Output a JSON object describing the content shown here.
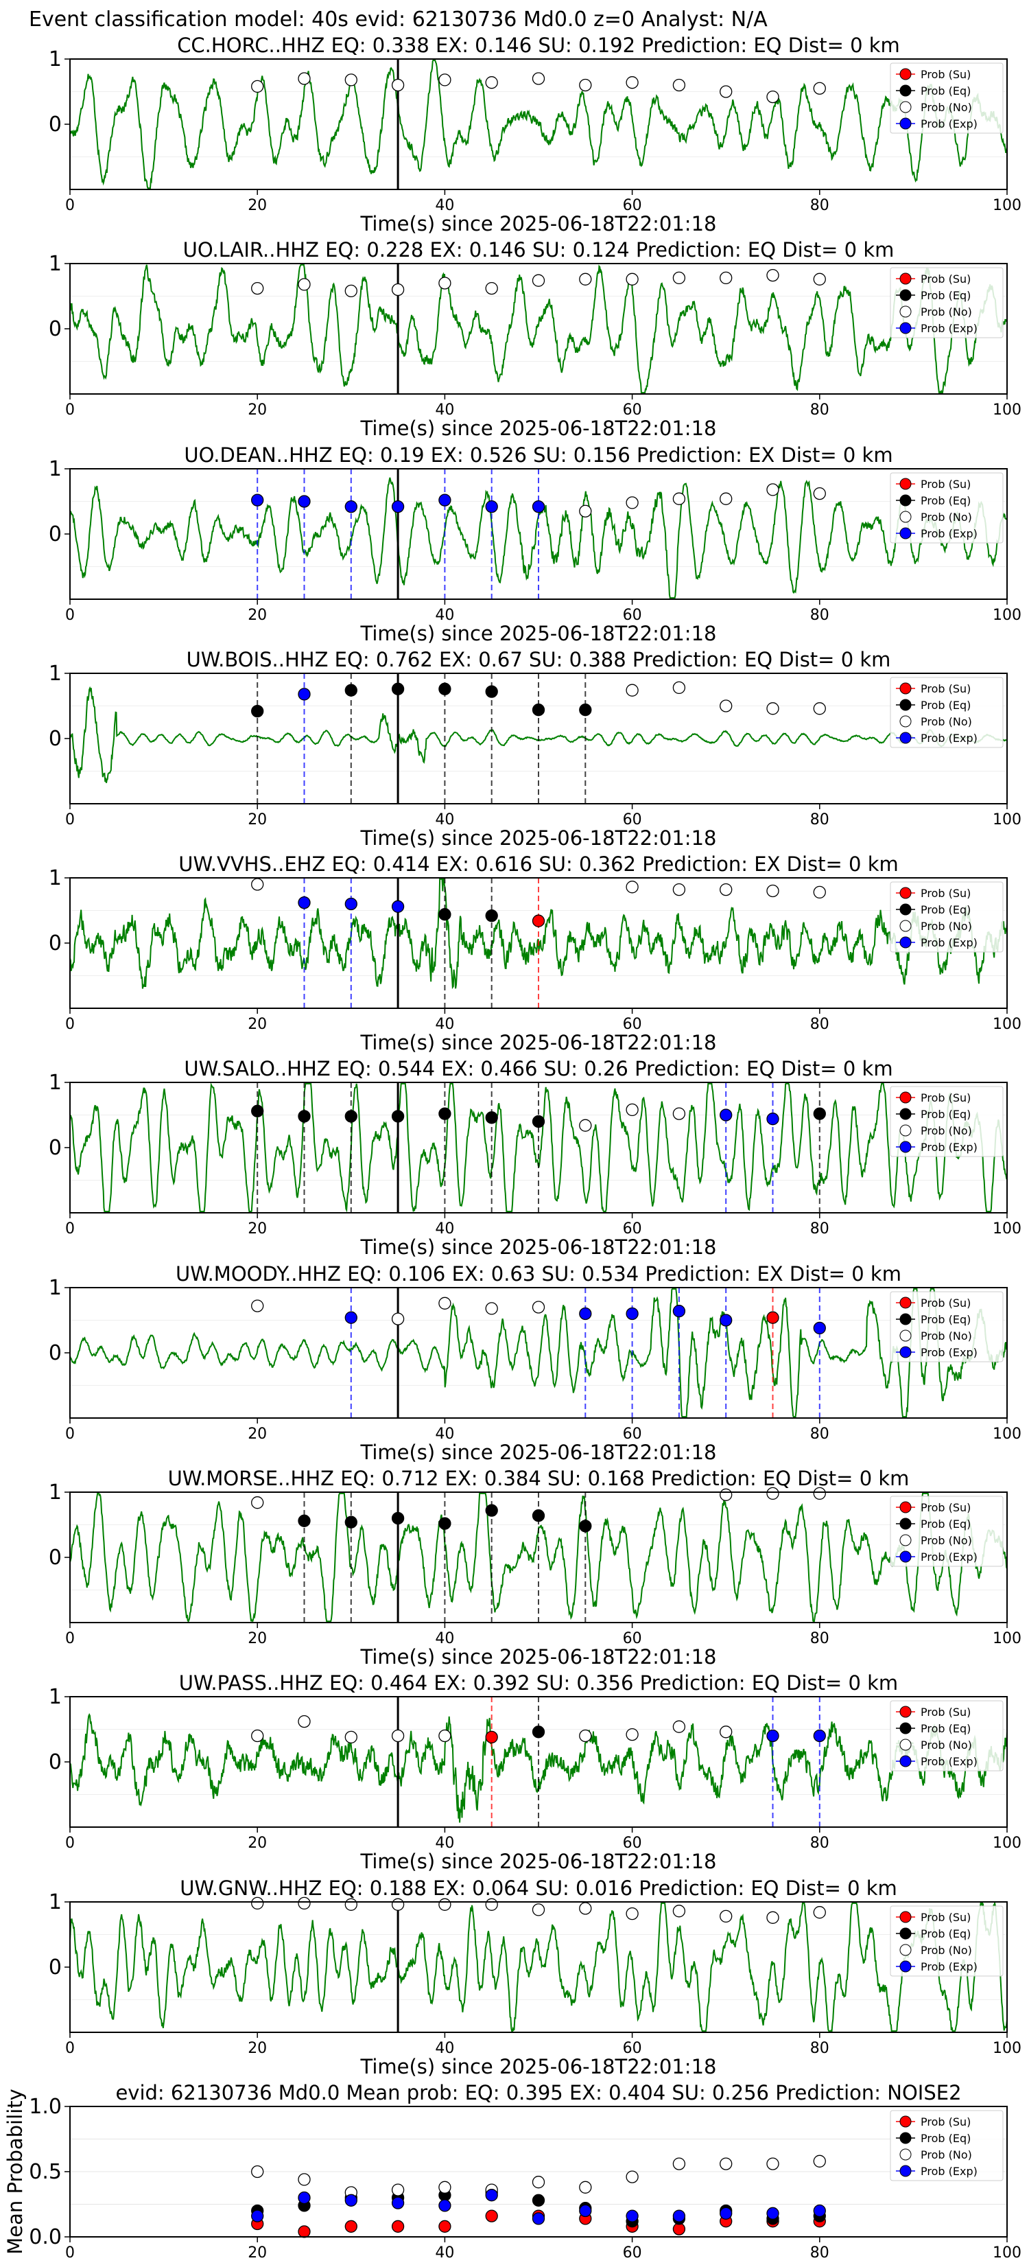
{
  "figure": {
    "suptitle": "Event classification model: 40s evid: 62130736 Md0.0 z=0 Analyst: N/A",
    "legend_labels": [
      "Prob (Su)",
      "Prob (Eq)",
      "Prob (No)",
      "Prob (Exp)"
    ],
    "legend_colors": [
      "#ff0000",
      "#000000",
      "#ffffff",
      "#0000ff"
    ],
    "waveform_color": "#008000",
    "xlabel": "Time(s) since 2025-06-18T22:01:18",
    "x_ticks": [
      "0",
      "20",
      "40",
      "60",
      "80",
      "100"
    ],
    "y_ticks_wave": [
      "1",
      "0"
    ],
    "y_ticks_mean": [
      "1.0",
      "0.5",
      "0.0"
    ],
    "onset_time": 35
  },
  "chart_data": [
    {
      "type": "line",
      "title": "CC.HORC..HHZ   EQ: 0.338  EX: 0.146  SU: 0.192   Prediction: EQ    Dist= 0 km",
      "xlim": [
        0,
        100
      ],
      "ylim": [
        -1,
        1
      ],
      "x": [
        20,
        25,
        30,
        35,
        40,
        45,
        50,
        55,
        60,
        65,
        70,
        75,
        80
      ],
      "series": [
        {
          "name": "Prob (No)",
          "values": [
            0.58,
            0.7,
            0.68,
            0.6,
            0.68,
            0.64,
            0.7,
            0.6,
            0.64,
            0.6,
            0.5,
            0.42,
            0.55
          ]
        }
      ],
      "markers": []
    },
    {
      "type": "line",
      "title": "UO.LAIR..HHZ   EQ: 0.228  EX: 0.146  SU: 0.124   Prediction: EQ    Dist= 0 km",
      "xlim": [
        0,
        100
      ],
      "ylim": [
        -1,
        1
      ],
      "x": [
        20,
        25,
        30,
        35,
        40,
        45,
        50,
        55,
        60,
        65,
        70,
        75,
        80
      ],
      "series": [
        {
          "name": "Prob (No)",
          "values": [
            0.62,
            0.68,
            0.58,
            0.6,
            0.7,
            0.62,
            0.74,
            0.76,
            0.76,
            0.78,
            0.78,
            0.82,
            0.76
          ]
        }
      ],
      "markers": []
    },
    {
      "type": "line",
      "title": "UO.DEAN..HHZ   EQ: 0.19  EX: 0.526  SU: 0.156   Prediction: EX    Dist= 0 km",
      "xlim": [
        0,
        100
      ],
      "ylim": [
        -1,
        1
      ],
      "x": [
        20,
        25,
        30,
        35,
        40,
        45,
        50,
        55,
        60,
        65,
        70,
        75,
        80
      ],
      "series": [
        {
          "name": "Prob (Exp)",
          "values": [
            0.52,
            0.5,
            0.42,
            0.42,
            0.52,
            0.42,
            0.42,
            null,
            null,
            null,
            null,
            null,
            null
          ]
        },
        {
          "name": "Prob (No)",
          "values": [
            null,
            null,
            null,
            null,
            null,
            null,
            null,
            0.35,
            0.48,
            0.54,
            0.54,
            0.68,
            0.62
          ]
        }
      ],
      "markers": [
        {
          "x": 20,
          "color": "#0000ff"
        },
        {
          "x": 25,
          "color": "#0000ff"
        },
        {
          "x": 30,
          "color": "#0000ff"
        },
        {
          "x": 40,
          "color": "#0000ff"
        },
        {
          "x": 45,
          "color": "#0000ff"
        },
        {
          "x": 50,
          "color": "#0000ff"
        }
      ]
    },
    {
      "type": "line",
      "title": "UW.BOIS..HHZ   EQ: 0.762  EX: 0.67  SU: 0.388   Prediction: EQ    Dist= 0 km",
      "xlim": [
        0,
        100
      ],
      "ylim": [
        -1,
        1
      ],
      "x": [
        20,
        25,
        30,
        35,
        40,
        45,
        50,
        55,
        60,
        65,
        70,
        75,
        80
      ],
      "series": [
        {
          "name": "Prob (Eq)",
          "values": [
            0.42,
            null,
            0.74,
            0.76,
            0.76,
            0.72,
            0.44,
            0.44,
            null,
            null,
            null,
            null,
            null
          ]
        },
        {
          "name": "Prob (Exp)",
          "values": [
            null,
            0.68,
            null,
            null,
            null,
            null,
            null,
            null,
            null,
            null,
            null,
            null,
            null
          ]
        },
        {
          "name": "Prob (No)",
          "values": [
            null,
            null,
            null,
            null,
            null,
            null,
            null,
            null,
            0.74,
            0.78,
            0.5,
            0.46,
            0.46
          ]
        }
      ],
      "markers": [
        {
          "x": 20,
          "color": "#000000"
        },
        {
          "x": 25,
          "color": "#0000ff"
        },
        {
          "x": 30,
          "color": "#000000"
        },
        {
          "x": 40,
          "color": "#000000"
        },
        {
          "x": 45,
          "color": "#000000"
        },
        {
          "x": 50,
          "color": "#000000"
        },
        {
          "x": 55,
          "color": "#000000"
        }
      ]
    },
    {
      "type": "line",
      "title": "UW.VVHS..EHZ   EQ: 0.414  EX: 0.616  SU: 0.362   Prediction: EX    Dist= 0 km",
      "xlim": [
        0,
        100
      ],
      "ylim": [
        -1,
        1
      ],
      "x": [
        20,
        25,
        30,
        35,
        40,
        45,
        50,
        55,
        60,
        65,
        70,
        75,
        80
      ],
      "series": [
        {
          "name": "Prob (No)",
          "values": [
            0.9,
            null,
            null,
            null,
            null,
            null,
            null,
            null,
            0.86,
            0.82,
            0.82,
            0.8,
            0.78
          ]
        },
        {
          "name": "Prob (Exp)",
          "values": [
            null,
            0.62,
            0.6,
            0.56,
            null,
            null,
            null,
            null,
            null,
            null,
            null,
            null,
            null
          ]
        },
        {
          "name": "Prob (Eq)",
          "values": [
            null,
            null,
            null,
            null,
            0.44,
            0.42,
            null,
            null,
            null,
            null,
            null,
            null,
            null
          ]
        },
        {
          "name": "Prob (Su)",
          "values": [
            null,
            null,
            null,
            null,
            null,
            null,
            0.34,
            null,
            null,
            null,
            null,
            null,
            null
          ]
        }
      ],
      "markers": [
        {
          "x": 25,
          "color": "#0000ff"
        },
        {
          "x": 30,
          "color": "#0000ff"
        },
        {
          "x": 40,
          "color": "#000000"
        },
        {
          "x": 45,
          "color": "#000000"
        },
        {
          "x": 50,
          "color": "#ff0000"
        }
      ]
    },
    {
      "type": "line",
      "title": "UW.SALO..HHZ   EQ: 0.544  EX: 0.466  SU: 0.26   Prediction: EQ    Dist= 0 km",
      "xlim": [
        0,
        100
      ],
      "ylim": [
        -1,
        1
      ],
      "x": [
        20,
        25,
        30,
        35,
        40,
        45,
        50,
        55,
        60,
        65,
        70,
        75,
        80
      ],
      "series": [
        {
          "name": "Prob (Eq)",
          "values": [
            0.56,
            0.48,
            0.48,
            0.48,
            0.52,
            0.46,
            0.4,
            null,
            null,
            null,
            null,
            null,
            0.52
          ]
        },
        {
          "name": "Prob (No)",
          "values": [
            null,
            null,
            null,
            null,
            null,
            null,
            null,
            0.34,
            0.58,
            0.52,
            null,
            null,
            null
          ]
        },
        {
          "name": "Prob (Exp)",
          "values": [
            null,
            null,
            null,
            null,
            null,
            null,
            null,
            null,
            null,
            null,
            0.5,
            0.44,
            null
          ]
        }
      ],
      "markers": [
        {
          "x": 20,
          "color": "#000000"
        },
        {
          "x": 25,
          "color": "#000000"
        },
        {
          "x": 30,
          "color": "#000000"
        },
        {
          "x": 40,
          "color": "#000000"
        },
        {
          "x": 45,
          "color": "#000000"
        },
        {
          "x": 50,
          "color": "#000000"
        },
        {
          "x": 70,
          "color": "#0000ff"
        },
        {
          "x": 75,
          "color": "#0000ff"
        },
        {
          "x": 80,
          "color": "#000000"
        }
      ]
    },
    {
      "type": "line",
      "title": "UW.MOODY..HHZ   EQ: 0.106  EX: 0.63  SU: 0.534   Prediction: EX    Dist= 0 km",
      "xlim": [
        0,
        100
      ],
      "ylim": [
        -1,
        1
      ],
      "x": [
        20,
        25,
        30,
        35,
        40,
        45,
        50,
        55,
        60,
        65,
        70,
        75,
        80
      ],
      "series": [
        {
          "name": "Prob (No)",
          "values": [
            0.72,
            null,
            null,
            0.52,
            0.76,
            0.68,
            0.7,
            null,
            null,
            null,
            null,
            null,
            null
          ]
        },
        {
          "name": "Prob (Exp)",
          "values": [
            null,
            null,
            0.54,
            null,
            null,
            null,
            null,
            0.6,
            0.6,
            0.64,
            0.5,
            null,
            0.38
          ]
        },
        {
          "name": "Prob (Su)",
          "values": [
            null,
            null,
            null,
            null,
            null,
            null,
            null,
            null,
            null,
            null,
            null,
            0.54,
            null
          ]
        }
      ],
      "markers": [
        {
          "x": 30,
          "color": "#0000ff"
        },
        {
          "x": 55,
          "color": "#0000ff"
        },
        {
          "x": 60,
          "color": "#0000ff"
        },
        {
          "x": 65,
          "color": "#0000ff"
        },
        {
          "x": 70,
          "color": "#0000ff"
        },
        {
          "x": 75,
          "color": "#ff0000"
        },
        {
          "x": 80,
          "color": "#0000ff"
        }
      ]
    },
    {
      "type": "line",
      "title": "UW.MORSE..HHZ   EQ: 0.712  EX: 0.384  SU: 0.168   Prediction: EQ    Dist= 0 km",
      "xlim": [
        0,
        100
      ],
      "ylim": [
        -1,
        1
      ],
      "x": [
        20,
        25,
        30,
        35,
        40,
        45,
        50,
        55,
        60,
        65,
        70,
        75,
        80
      ],
      "series": [
        {
          "name": "Prob (No)",
          "values": [
            0.84,
            null,
            null,
            null,
            null,
            null,
            null,
            null,
            null,
            null,
            0.96,
            0.98,
            0.98
          ]
        },
        {
          "name": "Prob (Eq)",
          "values": [
            null,
            0.56,
            0.54,
            0.6,
            0.52,
            0.72,
            0.64,
            0.48,
            null,
            null,
            null,
            null,
            null
          ]
        }
      ],
      "markers": [
        {
          "x": 25,
          "color": "#000000"
        },
        {
          "x": 30,
          "color": "#000000"
        },
        {
          "x": 40,
          "color": "#000000"
        },
        {
          "x": 45,
          "color": "#000000"
        },
        {
          "x": 50,
          "color": "#000000"
        },
        {
          "x": 55,
          "color": "#000000"
        }
      ]
    },
    {
      "type": "line",
      "title": "UW.PASS..HHZ   EQ: 0.464  EX: 0.392  SU: 0.356   Prediction: EQ    Dist= 0 km",
      "xlim": [
        0,
        100
      ],
      "ylim": [
        -1,
        1
      ],
      "x": [
        20,
        25,
        30,
        35,
        40,
        45,
        50,
        55,
        60,
        65,
        70,
        75,
        80
      ],
      "series": [
        {
          "name": "Prob (No)",
          "values": [
            0.4,
            0.62,
            0.38,
            0.4,
            0.4,
            null,
            null,
            0.4,
            0.42,
            0.54,
            0.46,
            null,
            null
          ]
        },
        {
          "name": "Prob (Su)",
          "values": [
            null,
            null,
            null,
            null,
            null,
            0.38,
            null,
            null,
            null,
            null,
            null,
            null,
            null
          ]
        },
        {
          "name": "Prob (Eq)",
          "values": [
            null,
            null,
            null,
            null,
            null,
            null,
            0.46,
            null,
            null,
            null,
            null,
            null,
            null
          ]
        },
        {
          "name": "Prob (Exp)",
          "values": [
            null,
            null,
            null,
            null,
            null,
            null,
            null,
            null,
            null,
            null,
            null,
            0.4,
            0.4
          ]
        }
      ],
      "markers": [
        {
          "x": 45,
          "color": "#ff0000"
        },
        {
          "x": 50,
          "color": "#000000"
        },
        {
          "x": 75,
          "color": "#0000ff"
        },
        {
          "x": 80,
          "color": "#0000ff"
        }
      ]
    },
    {
      "type": "line",
      "title": "UW.GNW..HHZ   EQ: 0.188  EX: 0.064  SU: 0.016   Prediction: EQ    Dist= 0 km",
      "xlim": [
        0,
        100
      ],
      "ylim": [
        -1,
        1
      ],
      "x": [
        20,
        25,
        30,
        35,
        40,
        45,
        50,
        55,
        60,
        65,
        70,
        75,
        80
      ],
      "series": [
        {
          "name": "Prob (No)",
          "values": [
            0.98,
            0.98,
            0.96,
            0.96,
            0.96,
            0.96,
            0.88,
            0.9,
            0.82,
            0.86,
            0.78,
            0.76,
            0.84
          ]
        }
      ],
      "markers": []
    },
    {
      "type": "scatter",
      "title": "evid: 62130736  Md0.0   Mean prob:   EQ: 0.395  EX: 0.404  SU: 0.256   Prediction: NOISE2",
      "ylabel": "Mean Probability",
      "xlim": [
        0,
        100
      ],
      "ylim": [
        0,
        1
      ],
      "x": [
        20,
        25,
        30,
        35,
        40,
        45,
        50,
        55,
        60,
        65,
        70,
        75,
        80
      ],
      "series": [
        {
          "name": "Prob (Su)",
          "values": [
            0.1,
            0.04,
            0.08,
            0.08,
            0.08,
            0.16,
            0.16,
            0.14,
            0.08,
            0.06,
            0.12,
            0.12,
            0.12
          ]
        },
        {
          "name": "Prob (Eq)",
          "values": [
            0.2,
            0.24,
            0.3,
            0.3,
            0.32,
            0.34,
            0.28,
            0.22,
            0.12,
            0.14,
            0.2,
            0.14,
            0.16
          ]
        },
        {
          "name": "Prob (No)",
          "values": [
            0.5,
            0.44,
            0.34,
            0.36,
            0.38,
            0.36,
            0.42,
            0.38,
            0.46,
            0.56,
            0.56,
            0.56,
            0.58
          ]
        },
        {
          "name": "Prob (Exp)",
          "values": [
            0.16,
            0.3,
            0.28,
            0.26,
            0.24,
            0.32,
            0.14,
            0.2,
            0.16,
            0.16,
            0.18,
            0.18,
            0.2
          ]
        }
      ]
    }
  ]
}
